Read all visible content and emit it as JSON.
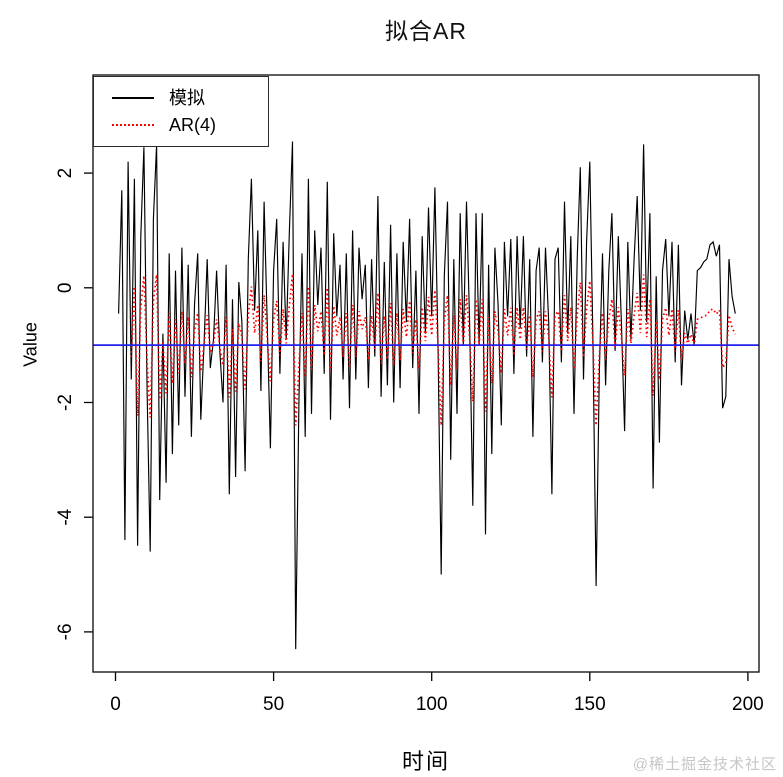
{
  "watermark": {
    "text": "@稀土掘金技术社区",
    "color": "#c6c6c6"
  },
  "chart_data": {
    "type": "line",
    "title": "拟合AR",
    "xlabel": "时间",
    "ylabel": "Value",
    "x_axis": {
      "ticks": [
        0,
        50,
        100,
        150,
        200
      ],
      "range": [
        -7.1,
        203.5
      ]
    },
    "y_axis": {
      "ticks": [
        2,
        0,
        -2,
        -4,
        -6
      ],
      "range": [
        -6.7,
        3.71
      ]
    },
    "grid": "off",
    "legend": {
      "position": "top-left",
      "entries": [
        {
          "label": "模拟",
          "color": "#000000",
          "style": "solid"
        },
        {
          "label": "AR(4)",
          "color": "#ff0000",
          "style": "dotted"
        }
      ]
    },
    "hline": {
      "value": -1.0,
      "color": "#2222ee"
    },
    "series": [
      {
        "name": "模拟",
        "color": "#000000",
        "style": "solid",
        "x_start": 1,
        "values": [
          -0.45,
          1.7,
          -4.4,
          2.2,
          -1.6,
          1.9,
          -4.5,
          0.9,
          2.45,
          -1.8,
          -4.6,
          1.2,
          2.5,
          -3.7,
          -0.8,
          -3.4,
          0.6,
          -2.9,
          0.3,
          -2.4,
          0.7,
          -1.9,
          0.4,
          -2.6,
          -0.3,
          0.6,
          -2.3,
          -1.0,
          0.5,
          -1.4,
          -0.9,
          0.3,
          -1.1,
          -2.0,
          0.4,
          -3.6,
          -0.2,
          -3.3,
          0.1,
          -0.6,
          -3.2,
          0.5,
          1.9,
          -0.4,
          1.0,
          -1.8,
          1.5,
          -0.6,
          -2.8,
          0.3,
          1.2,
          -1.5,
          0.8,
          -0.9,
          1.0,
          2.55,
          -6.3,
          -2.0,
          0.6,
          -2.6,
          1.9,
          -2.2,
          1.0,
          -0.3,
          0.7,
          -1.5,
          1.85,
          -2.3,
          0.95,
          -0.5,
          0.4,
          -1.6,
          0.6,
          -2.1,
          1.0,
          -1.6,
          0.7,
          -0.2,
          0.4,
          -1.75,
          0.5,
          -1.2,
          1.6,
          -1.9,
          0.45,
          -1.7,
          1.1,
          -2.0,
          0.6,
          -1.75,
          0.8,
          -0.6,
          1.2,
          -1.4,
          0.3,
          -2.2,
          0.9,
          -0.8,
          1.4,
          -0.5,
          1.75,
          -1.0,
          -5.0,
          0.2,
          1.5,
          -3.0,
          0.5,
          -2.2,
          1.3,
          -1.0,
          1.5,
          -0.6,
          -3.8,
          1.3,
          -1.0,
          1.3,
          -4.3,
          0.4,
          -2.9,
          0.7,
          -0.3,
          -2.4,
          0.8,
          -0.5,
          0.85,
          -1.5,
          0.9,
          -0.7,
          0.9,
          -1.2,
          0.5,
          -2.6,
          0.3,
          0.7,
          -1.3,
          0.7,
          -0.6,
          -3.6,
          0.5,
          0.7,
          -1.3,
          1.5,
          -0.8,
          0.9,
          -2.2,
          0.5,
          2.1,
          -1.6,
          0.8,
          2.2,
          -1.0,
          -5.2,
          -1.5,
          0.6,
          -1.7,
          0.3,
          1.3,
          -1.1,
          0.9,
          -0.6,
          -2.5,
          0.8,
          -0.9,
          0.5,
          1.6,
          -0.4,
          2.5,
          -0.6,
          1.3,
          -3.5,
          0.2,
          -2.7,
          0.3,
          0.85,
          -0.5,
          0.8,
          -1.3,
          0.75,
          -1.7,
          -0.4,
          -0.9,
          -0.45,
          -1.0,
          0.3,
          0.35,
          0.45,
          0.5,
          0.75,
          0.8,
          0.55,
          0.75,
          -2.1,
          -1.9,
          0.5,
          -0.15,
          -0.45
        ]
      },
      {
        "name": "AR(4)",
        "color": "#ff0000",
        "style": "dotted",
        "x_start": 5,
        "values": [
          -1.21,
          0.02,
          -2.23,
          -0.34,
          0.21,
          -1.28,
          -2.26,
          -0.23,
          0.23,
          -1.95,
          -0.93,
          -1.84,
          -0.44,
          -1.67,
          -0.55,
          -1.49,
          -0.41,
          -1.32,
          -0.51,
          -1.56,
          -0.76,
          -0.44,
          -1.46,
          -1.0,
          -0.48,
          -1.14,
          -0.97,
          -0.55,
          -1.04,
          -1.35,
          -0.51,
          -1.91,
          -0.72,
          -1.81,
          -0.62,
          -0.86,
          -1.77,
          -0.48,
          0.02,
          -0.79,
          -0.3,
          -1.28,
          -0.13,
          -0.86,
          -1.63,
          -0.55,
          -0.23,
          -1.18,
          -0.37,
          -0.97,
          -0.3,
          0.24,
          -2.4,
          -1.35,
          -0.44,
          -1.56,
          0.02,
          -1.42,
          -0.3,
          -0.76,
          -0.41,
          -1.18,
          0.0,
          -1.46,
          -0.32,
          -0.83,
          -0.51,
          -1.21,
          -0.44,
          -1.39,
          -0.3,
          -1.21,
          -0.41,
          -0.72,
          -0.51,
          -1.26,
          -0.48,
          -1.07,
          -0.09,
          -1.32,
          -0.49,
          -1.25,
          -0.27,
          -1.35,
          -0.44,
          -1.26,
          -0.37,
          -0.86,
          -0.23,
          -1.14,
          -0.55,
          -1.42,
          -0.34,
          -0.93,
          -0.16,
          -0.83,
          -0.04,
          -1.0,
          -2.4,
          -0.58,
          -0.13,
          -1.7,
          -0.48,
          -1.42,
          -0.2,
          -1.0,
          -0.13,
          -0.86,
          -1.98,
          -0.2,
          -1.0,
          -0.2,
          -2.16,
          -0.51,
          -1.67,
          -0.41,
          -0.76,
          -1.49,
          -0.37,
          -0.83,
          -0.35,
          -1.18,
          -0.34,
          -0.9,
          -0.34,
          -1.07,
          -0.48,
          -1.56,
          -0.55,
          -0.41,
          -1.11,
          -0.41,
          -0.86,
          -1.91,
          -0.48,
          -0.41,
          -1.11,
          -0.13,
          -0.93,
          -0.34,
          -1.42,
          -0.48,
          0.09,
          -1.21,
          -0.37,
          0.12,
          -1.0,
          -2.4,
          -1.18,
          -0.44,
          -1.25,
          -0.55,
          -0.2,
          -1.04,
          -0.34,
          -0.86,
          -1.53,
          -0.37,
          -0.97,
          -0.48,
          -0.09,
          -0.79,
          0.23,
          -0.86,
          -0.2,
          -1.88,
          -0.58,
          -1.6,
          -0.55,
          -0.35,
          -0.83,
          -0.37,
          -1.11,
          -0.39,
          -1.25,
          -0.79,
          -0.97,
          -0.81,
          -1.0,
          -0.55,
          -0.53,
          -0.49,
          -0.48,
          -0.39,
          -0.37,
          -0.46,
          -0.39,
          -1.39,
          -1.32,
          -0.48,
          -0.7,
          -0.81
        ]
      }
    ]
  }
}
